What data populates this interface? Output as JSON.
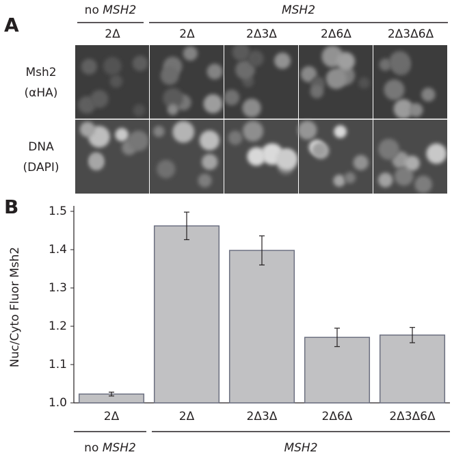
{
  "panel_a": {
    "label": "A",
    "groups": [
      {
        "prefix": "no",
        "gene": "MSH2"
      },
      {
        "gene": "MSH2"
      }
    ],
    "columns": [
      "2Δ",
      "2Δ",
      "2Δ3Δ",
      "2Δ6Δ",
      "2Δ3Δ6Δ"
    ],
    "rows": [
      [
        "Msh2",
        "(αHA)"
      ],
      [
        "DNA",
        "(DAPI)"
      ]
    ]
  },
  "chart_data": {
    "type": "bar",
    "panel_label": "B",
    "y_label": "Nuc/Cyto Fluor Msh2",
    "categories": [
      "2Δ",
      "2Δ",
      "2Δ3Δ",
      "2Δ6Δ",
      "2Δ3Δ6Δ"
    ],
    "groups": [
      {
        "prefix": "no",
        "gene": "MSH2"
      },
      {
        "gene": "MSH2"
      }
    ],
    "values": [
      1.023,
      1.462,
      1.398,
      1.171,
      1.177
    ],
    "errors": [
      0.005,
      0.036,
      0.038,
      0.024,
      0.02
    ],
    "color": "#c1c1c3",
    "ylim": [
      1.0,
      1.5
    ],
    "yticks": [
      {
        "value": 1.0,
        "label": "1.0"
      },
      1.1,
      1.2,
      1.3,
      1.4,
      1.5
    ],
    "grid": false
  }
}
